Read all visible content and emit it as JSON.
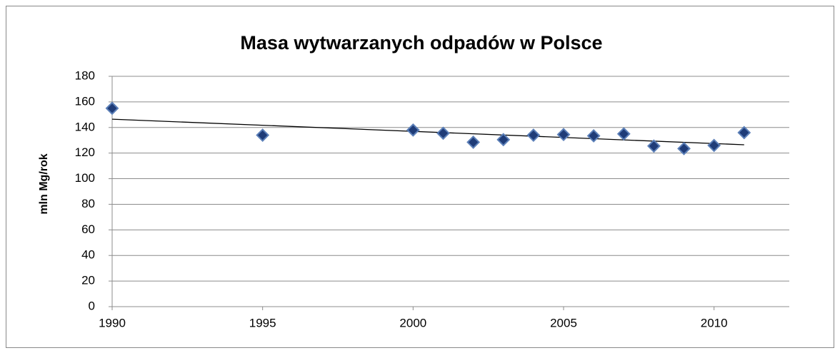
{
  "chart_data": {
    "type": "scatter",
    "title": "Masa wytwarzanych odpadów w Polsce",
    "y_label": "mln  Mg/rok",
    "x": [
      1990,
      1995,
      2000,
      2001,
      2002,
      2003,
      2004,
      2005,
      2006,
      2007,
      2008,
      2009,
      2010,
      2011
    ],
    "values": [
      155,
      134,
      138,
      135.5,
      128.5,
      130.5,
      134,
      134.5,
      133.5,
      135,
      125.5,
      123.5,
      126,
      136
    ],
    "color": "#1f3c78",
    "trendline": {
      "x": [
        1990,
        2011
      ],
      "values": [
        146.5,
        126.5
      ],
      "color": "#000000"
    },
    "xlim": [
      1990,
      2012.5
    ],
    "xticks": [
      1990,
      1995,
      2000,
      2005,
      2010
    ],
    "ylim": [
      0,
      180
    ],
    "yticks": [
      0,
      20,
      40,
      60,
      80,
      100,
      120,
      140,
      160,
      180
    ],
    "grid": true
  }
}
